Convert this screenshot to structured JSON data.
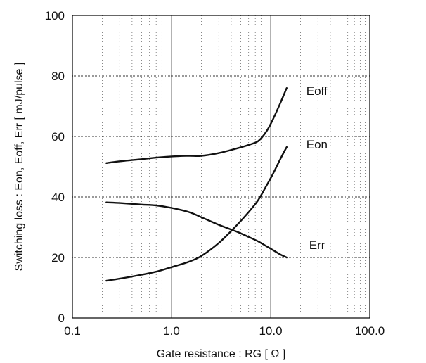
{
  "chart_data": {
    "type": "line",
    "title": "",
    "xlabel": "Gate resistance : RG [ Ω ]",
    "ylabel": "Switching loss : Eon, Eoff, Err [ mJ/pulse ]",
    "x_scale": "log",
    "xlim": [
      0.1,
      100
    ],
    "ylim": [
      0,
      100
    ],
    "x_ticks": [
      "0.1",
      "1.0",
      "10.0",
      "100.0"
    ],
    "y_ticks": [
      "0",
      "20",
      "40",
      "60",
      "80",
      "100"
    ],
    "grid": true,
    "legend": "none",
    "series": [
      {
        "name": "Eoff",
        "points": [
          [
            0.22,
            51.2
          ],
          [
            0.3,
            51.8
          ],
          [
            0.5,
            52.5
          ],
          [
            0.7,
            53.0
          ],
          [
            1.0,
            53.4
          ],
          [
            1.5,
            53.6
          ],
          [
            2.0,
            53.6
          ],
          [
            3.0,
            54.5
          ],
          [
            4.5,
            56.0
          ],
          [
            6.0,
            57.2
          ],
          [
            7.5,
            58.5
          ],
          [
            9.0,
            61.5
          ],
          [
            10.5,
            65.5
          ],
          [
            12.5,
            71.0
          ],
          [
            14.5,
            76.0
          ]
        ]
      },
      {
        "name": "Eon",
        "points": [
          [
            0.22,
            12.3
          ],
          [
            0.3,
            13.0
          ],
          [
            0.5,
            14.3
          ],
          [
            0.7,
            15.3
          ],
          [
            1.0,
            16.8
          ],
          [
            1.5,
            18.6
          ],
          [
            2.0,
            20.5
          ],
          [
            3.0,
            24.8
          ],
          [
            4.5,
            30.5
          ],
          [
            6.0,
            35.0
          ],
          [
            7.5,
            39.0
          ],
          [
            9.0,
            43.5
          ],
          [
            10.5,
            47.5
          ],
          [
            12.5,
            52.5
          ],
          [
            14.5,
            56.5
          ]
        ]
      },
      {
        "name": "Err",
        "points": [
          [
            0.22,
            38.2
          ],
          [
            0.3,
            38.0
          ],
          [
            0.5,
            37.5
          ],
          [
            0.7,
            37.2
          ],
          [
            1.0,
            36.4
          ],
          [
            1.5,
            35.0
          ],
          [
            2.0,
            33.3
          ],
          [
            3.0,
            30.8
          ],
          [
            4.5,
            28.6
          ],
          [
            6.0,
            26.8
          ],
          [
            7.5,
            25.3
          ],
          [
            9.0,
            23.8
          ],
          [
            10.5,
            22.5
          ],
          [
            12.5,
            21.0
          ],
          [
            14.5,
            20.0
          ]
        ]
      }
    ]
  },
  "colors": {
    "line": "#111111",
    "grid": "#555555",
    "axis": "#000000"
  }
}
